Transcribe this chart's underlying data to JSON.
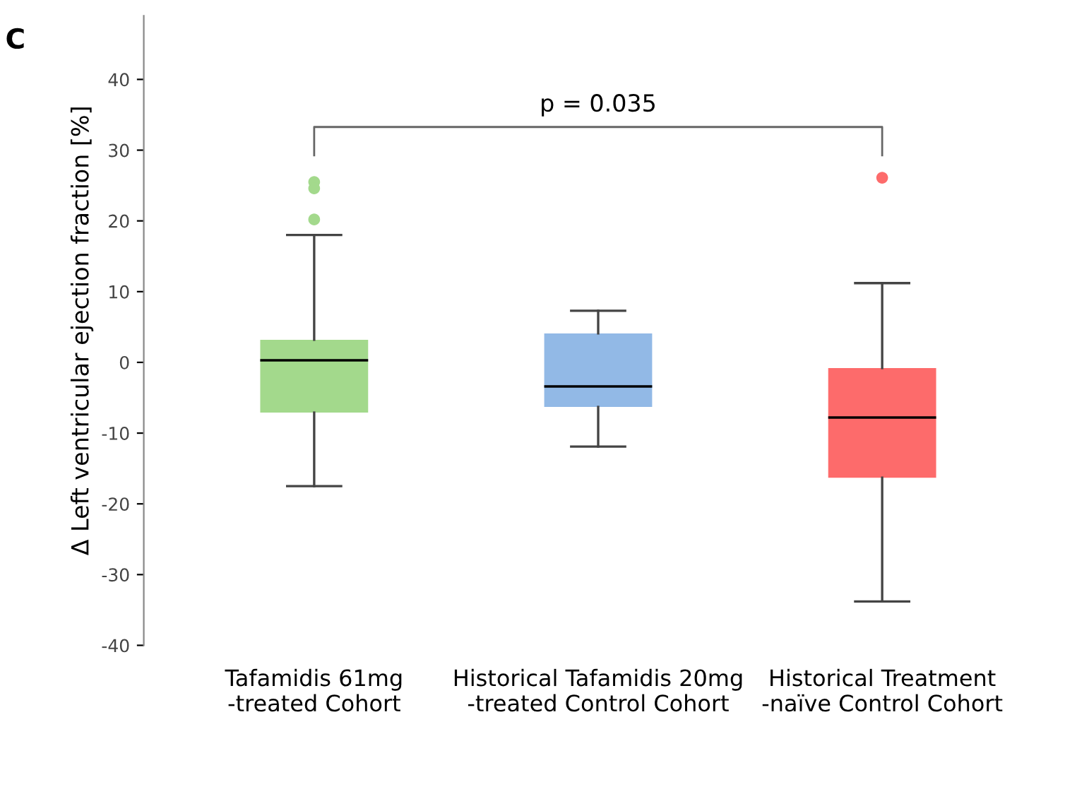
{
  "chart_data": {
    "type": "box",
    "ylabel": "Δ Left ventricular ejection fraction [%]",
    "categories": [
      "Tafamidis 61mg\n-treated Cohort",
      "Historical Tafamidis 20mg\n-treated Control Cohort",
      "Historical Treatment\n-naïve Control Cohort"
    ],
    "boxes": [
      {
        "low": -17.5,
        "q1": -7.1,
        "median": 0.3,
        "q3": 3.2,
        "high": 18,
        "outliers": [
          25.5,
          24.6,
          20.2
        ]
      },
      {
        "low": -11.9,
        "q1": -6.3,
        "median": -3.4,
        "q3": 4.1,
        "high": 7.3
      },
      {
        "low": -33.8,
        "q1": -16.3,
        "median": -7.8,
        "q3": -0.8,
        "high": 11.2,
        "outliers": [
          26.1
        ]
      }
    ],
    "colors": [
      "#a3d98c",
      "#92b9e6",
      "#fd6b6b"
    ],
    "ylim": [
      -40,
      49
    ],
    "yticks": [
      -40,
      -30,
      -20,
      -10,
      0,
      10,
      20,
      30,
      40
    ],
    "grid": false,
    "annotations": [
      "C",
      "p = 0.035"
    ]
  }
}
